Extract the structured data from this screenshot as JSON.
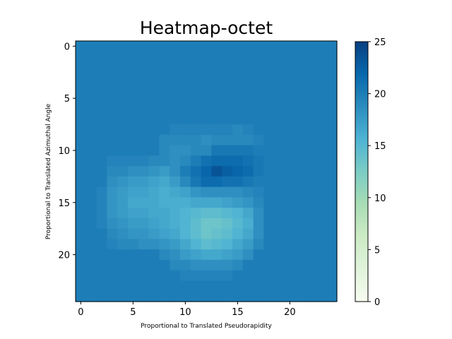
{
  "chart_data": {
    "type": "heatmap",
    "title": "Heatmap-octet",
    "xlabel": "Proportional to Translated Pseudorapidity",
    "ylabel": "Proportional to Translated Azimuthal Angle",
    "x_ticks": [
      "0",
      "5",
      "10",
      "15",
      "20"
    ],
    "y_ticks": [
      "0",
      "5",
      "10",
      "15",
      "20"
    ],
    "colorbar_ticks": [
      "0",
      "5",
      "10",
      "15",
      "20",
      "25"
    ],
    "colormap": "GnBu",
    "vmin": 0,
    "vmax": 25,
    "rows": 25,
    "cols": 25,
    "background_value": 20,
    "cells": [
      [
        8,
        9,
        19.5
      ],
      [
        8,
        10,
        19.5
      ],
      [
        8,
        11,
        19.5
      ],
      [
        8,
        12,
        19.5
      ],
      [
        8,
        13,
        19.5
      ],
      [
        8,
        14,
        19.5
      ],
      [
        8,
        15,
        19
      ],
      [
        8,
        16,
        19.5
      ],
      [
        9,
        8,
        19
      ],
      [
        9,
        9,
        19
      ],
      [
        9,
        10,
        19
      ],
      [
        9,
        11,
        19
      ],
      [
        9,
        12,
        18.5
      ],
      [
        9,
        13,
        19
      ],
      [
        9,
        14,
        19
      ],
      [
        9,
        15,
        19
      ],
      [
        9,
        16,
        19
      ],
      [
        9,
        17,
        19.5
      ],
      [
        10,
        8,
        19
      ],
      [
        10,
        9,
        18.5
      ],
      [
        10,
        10,
        18.5
      ],
      [
        10,
        11,
        19
      ],
      [
        10,
        12,
        19
      ],
      [
        10,
        13,
        20.5
      ],
      [
        10,
        14,
        20.5
      ],
      [
        10,
        15,
        20.5
      ],
      [
        10,
        16,
        20.5
      ],
      [
        10,
        17,
        20
      ],
      [
        11,
        3,
        19.5
      ],
      [
        11,
        4,
        19.5
      ],
      [
        11,
        5,
        19.5
      ],
      [
        11,
        6,
        19.5
      ],
      [
        11,
        7,
        19
      ],
      [
        11,
        8,
        19
      ],
      [
        11,
        9,
        18.5
      ],
      [
        11,
        10,
        19
      ],
      [
        11,
        11,
        20
      ],
      [
        11,
        12,
        21
      ],
      [
        11,
        13,
        21.5
      ],
      [
        11,
        14,
        21.5
      ],
      [
        11,
        15,
        21.5
      ],
      [
        11,
        16,
        21
      ],
      [
        11,
        17,
        20.5
      ],
      [
        12,
        3,
        19
      ],
      [
        12,
        4,
        19
      ],
      [
        12,
        5,
        18.5
      ],
      [
        12,
        6,
        18.5
      ],
      [
        12,
        7,
        18
      ],
      [
        12,
        8,
        17.5
      ],
      [
        12,
        9,
        18.5
      ],
      [
        12,
        10,
        20
      ],
      [
        12,
        11,
        21
      ],
      [
        12,
        12,
        22
      ],
      [
        12,
        13,
        23.5
      ],
      [
        12,
        14,
        22.5
      ],
      [
        12,
        15,
        22
      ],
      [
        12,
        16,
        21.5
      ],
      [
        12,
        17,
        20.5
      ],
      [
        13,
        3,
        18.5
      ],
      [
        13,
        4,
        18
      ],
      [
        13,
        5,
        17.5
      ],
      [
        13,
        6,
        17.5
      ],
      [
        13,
        7,
        17
      ],
      [
        13,
        8,
        16.5
      ],
      [
        13,
        9,
        17.5
      ],
      [
        13,
        10,
        19
      ],
      [
        13,
        11,
        20.5
      ],
      [
        13,
        12,
        21.5
      ],
      [
        13,
        13,
        21.5
      ],
      [
        13,
        14,
        21
      ],
      [
        13,
        15,
        21
      ],
      [
        13,
        16,
        20.5
      ],
      [
        13,
        17,
        20
      ],
      [
        14,
        2,
        19.5
      ],
      [
        14,
        3,
        18
      ],
      [
        14,
        4,
        17.5
      ],
      [
        14,
        5,
        17
      ],
      [
        14,
        6,
        17
      ],
      [
        14,
        7,
        16.5
      ],
      [
        14,
        8,
        16
      ],
      [
        14,
        9,
        16.5
      ],
      [
        14,
        10,
        17
      ],
      [
        14,
        11,
        18
      ],
      [
        14,
        12,
        18.5
      ],
      [
        14,
        13,
        18.5
      ],
      [
        14,
        14,
        18.5
      ],
      [
        14,
        15,
        18.5
      ],
      [
        14,
        16,
        19
      ],
      [
        14,
        17,
        19.5
      ],
      [
        15,
        2,
        19.5
      ],
      [
        15,
        3,
        18
      ],
      [
        15,
        4,
        17.5
      ],
      [
        15,
        5,
        16.5
      ],
      [
        15,
        6,
        16.5
      ],
      [
        15,
        7,
        16.5
      ],
      [
        15,
        8,
        16
      ],
      [
        15,
        9,
        16
      ],
      [
        15,
        10,
        16
      ],
      [
        15,
        11,
        16.5
      ],
      [
        15,
        12,
        16.5
      ],
      [
        15,
        13,
        16.5
      ],
      [
        15,
        14,
        17
      ],
      [
        15,
        15,
        17.5
      ],
      [
        15,
        16,
        18
      ],
      [
        15,
        17,
        19
      ],
      [
        16,
        2,
        19.5
      ],
      [
        16,
        3,
        18
      ],
      [
        16,
        4,
        17.5
      ],
      [
        16,
        5,
        17
      ],
      [
        16,
        6,
        17
      ],
      [
        16,
        7,
        16.5
      ],
      [
        16,
        8,
        16.5
      ],
      [
        16,
        9,
        16
      ],
      [
        16,
        10,
        15.5
      ],
      [
        16,
        11,
        15
      ],
      [
        16,
        12,
        14.5
      ],
      [
        16,
        13,
        14.5
      ],
      [
        16,
        14,
        15
      ],
      [
        16,
        15,
        15.5
      ],
      [
        16,
        16,
        16.5
      ],
      [
        16,
        17,
        18.5
      ],
      [
        17,
        2,
        19.5
      ],
      [
        17,
        3,
        18.5
      ],
      [
        17,
        4,
        18
      ],
      [
        17,
        5,
        17.5
      ],
      [
        17,
        6,
        17.5
      ],
      [
        17,
        7,
        17
      ],
      [
        17,
        8,
        16.5
      ],
      [
        17,
        9,
        16
      ],
      [
        17,
        10,
        15.5
      ],
      [
        17,
        11,
        14.5
      ],
      [
        17,
        12,
        13.5
      ],
      [
        17,
        13,
        13.5
      ],
      [
        17,
        14,
        14
      ],
      [
        17,
        15,
        15
      ],
      [
        17,
        16,
        16
      ],
      [
        17,
        17,
        18.5
      ],
      [
        18,
        3,
        19
      ],
      [
        18,
        4,
        18.5
      ],
      [
        18,
        5,
        18
      ],
      [
        18,
        6,
        18
      ],
      [
        18,
        7,
        17.5
      ],
      [
        18,
        8,
        17
      ],
      [
        18,
        9,
        16.5
      ],
      [
        18,
        10,
        15.5
      ],
      [
        18,
        11,
        14.5
      ],
      [
        18,
        12,
        13.5
      ],
      [
        18,
        13,
        14
      ],
      [
        18,
        14,
        14.5
      ],
      [
        18,
        15,
        15.5
      ],
      [
        18,
        16,
        16.5
      ],
      [
        18,
        17,
        18.5
      ],
      [
        19,
        3,
        19.5
      ],
      [
        19,
        4,
        19
      ],
      [
        19,
        5,
        19
      ],
      [
        19,
        6,
        18.5
      ],
      [
        19,
        7,
        18.5
      ],
      [
        19,
        8,
        18
      ],
      [
        19,
        9,
        17.5
      ],
      [
        19,
        10,
        16.5
      ],
      [
        19,
        11,
        15.5
      ],
      [
        19,
        12,
        14.5
      ],
      [
        19,
        13,
        15
      ],
      [
        19,
        14,
        15.5
      ],
      [
        19,
        15,
        16.5
      ],
      [
        19,
        16,
        17.5
      ],
      [
        19,
        17,
        19
      ],
      [
        20,
        8,
        19
      ],
      [
        20,
        9,
        18.5
      ],
      [
        20,
        10,
        17.5
      ],
      [
        20,
        11,
        17
      ],
      [
        20,
        12,
        16.5
      ],
      [
        20,
        13,
        16.5
      ],
      [
        20,
        14,
        17
      ],
      [
        20,
        15,
        17.5
      ],
      [
        20,
        16,
        18.5
      ],
      [
        21,
        9,
        19
      ],
      [
        21,
        10,
        19
      ],
      [
        21,
        11,
        18.5
      ],
      [
        21,
        12,
        18.5
      ],
      [
        21,
        13,
        18.5
      ],
      [
        21,
        14,
        18.5
      ],
      [
        21,
        15,
        19
      ],
      [
        22,
        10,
        19.5
      ],
      [
        22,
        11,
        19.5
      ],
      [
        22,
        12,
        19.5
      ],
      [
        22,
        13,
        19.5
      ],
      [
        22,
        14,
        19.5
      ]
    ]
  }
}
